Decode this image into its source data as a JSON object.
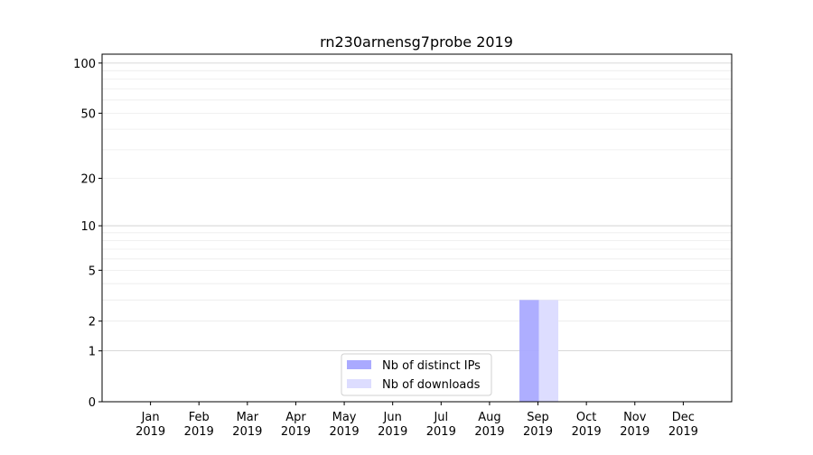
{
  "chart_data": {
    "type": "bar",
    "title": "rn230arnensg7probe 2019",
    "xlabel": "",
    "ylabel": "",
    "yscale": "log(1+y)",
    "ylim": [
      0,
      113
    ],
    "categories": [
      "Jan\n2019",
      "Feb\n2019",
      "Mar\n2019",
      "Apr\n2019",
      "May\n2019",
      "Jun\n2019",
      "Jul\n2019",
      "Aug\n2019",
      "Sep\n2019",
      "Oct\n2019",
      "Nov\n2019",
      "Dec\n2019"
    ],
    "y_ticks": [
      0,
      1,
      2,
      5,
      10,
      20,
      50,
      100
    ],
    "y_tick_labels": [
      "0",
      "1",
      "2",
      "5",
      "10",
      "20",
      "50",
      "100"
    ],
    "grid": true,
    "legend_position": "lower-center",
    "series": [
      {
        "name": "Nb of distinct IPs",
        "color": "#aaaaff",
        "values": [
          0,
          0,
          0,
          0,
          0,
          0,
          0,
          0,
          3,
          0,
          0,
          0
        ]
      },
      {
        "name": "Nb of downloads",
        "color": "#ddddff",
        "values": [
          0,
          0,
          0,
          0,
          0,
          0,
          0,
          0,
          3,
          0,
          0,
          0
        ]
      }
    ]
  }
}
